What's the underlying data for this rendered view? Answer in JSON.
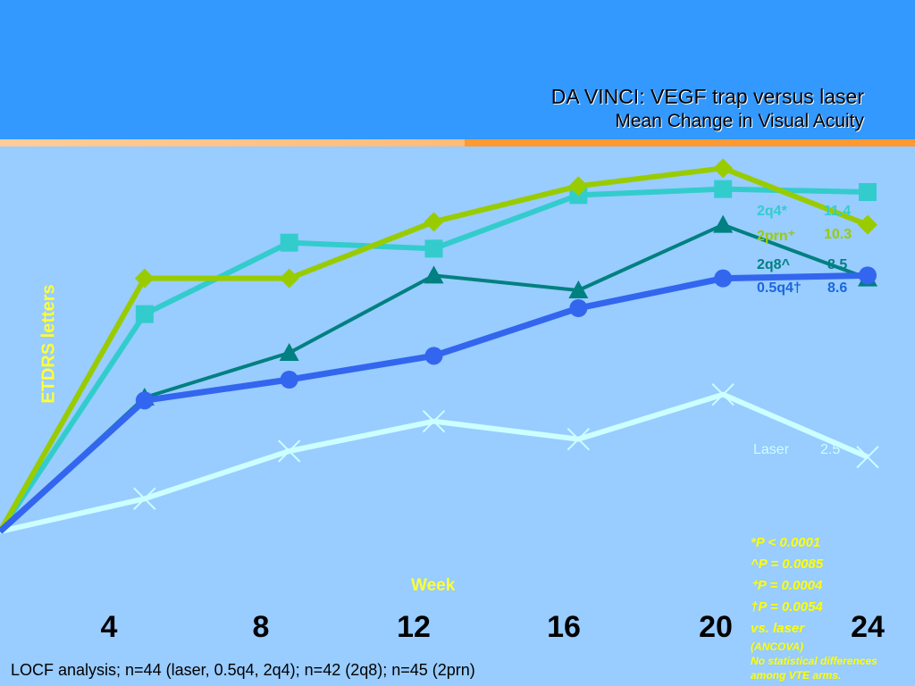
{
  "title": "DA VINCI: VEGF trap versus laser",
  "subtitle": "Mean Change in Visual Acuity",
  "footnote": "LOCF analysis; n=44 (laser, 0.5q4, 2q4); n=42 (2q8); n=45 (2prn)",
  "colors": {
    "background": "#99ccff",
    "header": "#3399ff",
    "stripe": "#ff9933",
    "label_yellow": "#ffff33"
  },
  "legend": [
    {
      "name": "2q4*",
      "value": "11.4",
      "color": "#33cccc"
    },
    {
      "name": "2prn⁺",
      "value": "10.3",
      "color": "#99cc00"
    },
    {
      "name": "2q8^",
      "value": "8.5",
      "color": "#008080"
    },
    {
      "name": "0.5q4†",
      "value": "8.6",
      "color": "#1a66dd"
    },
    {
      "name": "Laser",
      "value": "2.5",
      "color": "#ccffff"
    }
  ],
  "pvalues": {
    "p1": "*P < 0.0001",
    "p2": "^P = 0.0085",
    "p3": "⁺P = 0.0004",
    "p4": "†P = 0.0054",
    "vs": "vs. laser",
    "ancova": "(ANCOVA)",
    "note1": "No statistical differences",
    "note2": "among VTE arms."
  },
  "chart_data": {
    "type": "line",
    "title": "DA VINCI: VEGF trap versus laser",
    "subtitle": "Mean Change in Visual Acuity",
    "xlabel": "Week",
    "ylabel": "ETDRS letters",
    "x": [
      0,
      4,
      8,
      12,
      16,
      20,
      24
    ],
    "xticks": [
      "4",
      "8",
      "12",
      "16",
      "20",
      "24"
    ],
    "xlim": [
      0,
      24
    ],
    "ylim": [
      0,
      13.8
    ],
    "grid": false,
    "legend_position": "right",
    "series": [
      {
        "name": "2q4*",
        "color": "#33cccc",
        "marker": "square",
        "width": 6,
        "values": [
          0,
          7.3,
          9.7,
          9.5,
          11.3,
          11.5,
          11.4
        ]
      },
      {
        "name": "2prn⁺",
        "color": "#99cc00",
        "marker": "diamond",
        "width": 6,
        "values": [
          0,
          8.5,
          8.5,
          10.4,
          11.6,
          12.2,
          10.3
        ]
      },
      {
        "name": "2q8^",
        "color": "#008080",
        "marker": "triangle",
        "width": 4,
        "values": [
          0,
          4.5,
          6.0,
          8.6,
          8.1,
          10.3,
          8.5
        ]
      },
      {
        "name": "0.5q4†",
        "color": "#3366ee",
        "marker": "circle",
        "width": 7,
        "values": [
          0,
          4.4,
          5.1,
          5.9,
          7.5,
          8.5,
          8.6
        ]
      },
      {
        "name": "Laser",
        "color": "#ccffff",
        "marker": "x",
        "width": 6,
        "values": [
          0,
          1.1,
          2.7,
          3.7,
          3.1,
          4.6,
          2.5
        ]
      }
    ]
  }
}
